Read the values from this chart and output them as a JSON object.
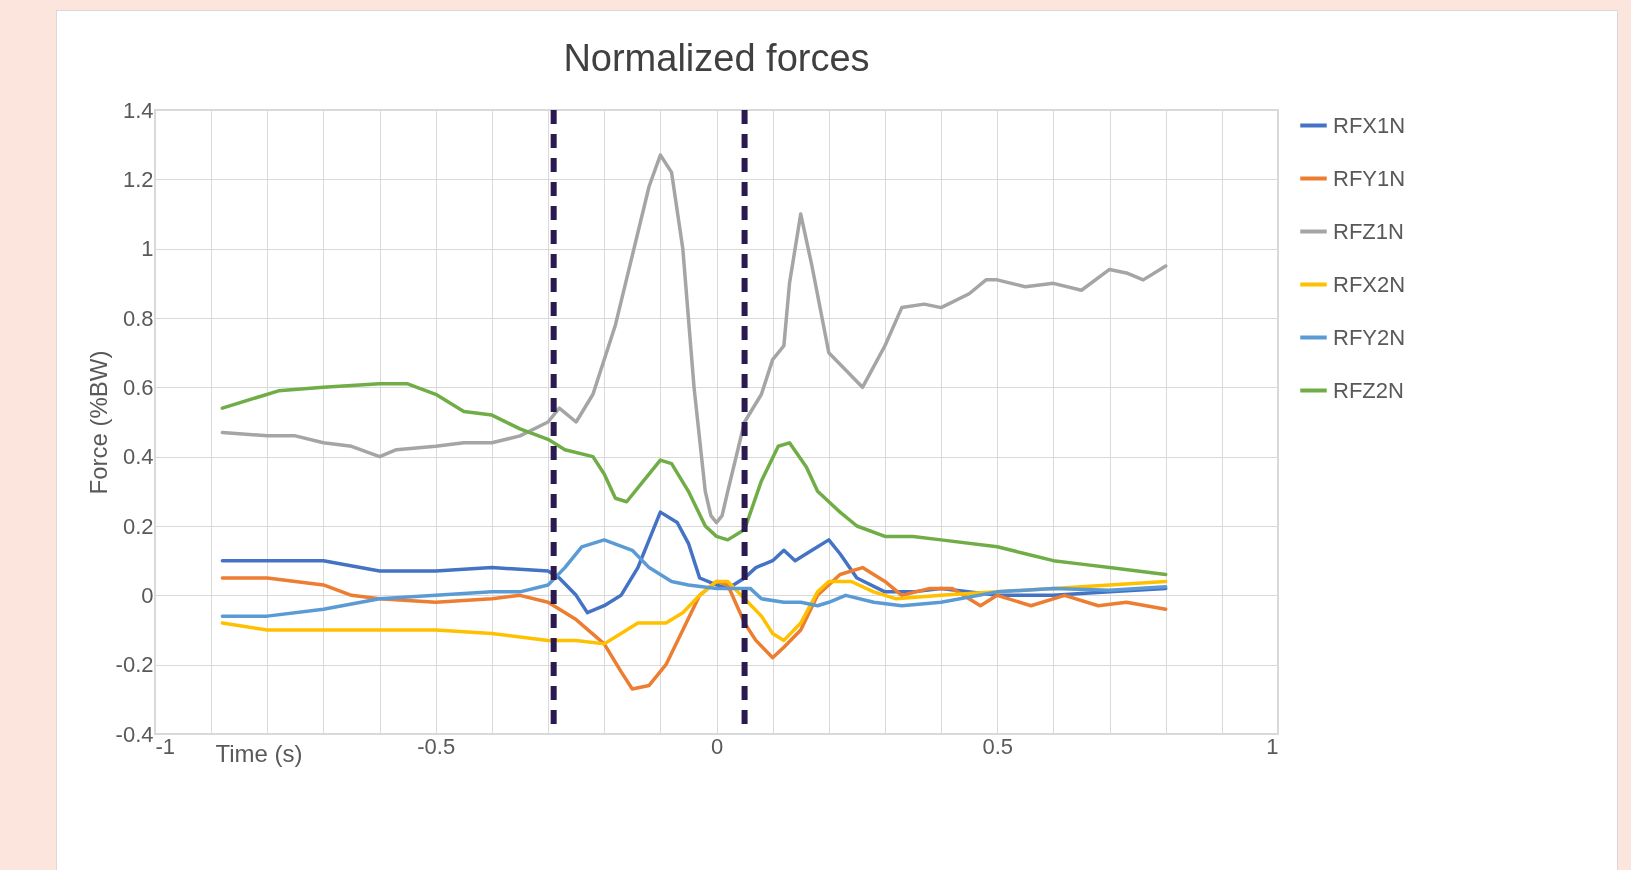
{
  "chart_data": {
    "type": "line",
    "title": "Normalized forces",
    "xlabel": "Time (s)",
    "ylabel": "Force (%BW)",
    "xlim": [
      -1,
      1
    ],
    "xticks": [
      -1,
      {
        "value": -0.9,
        "label": null
      },
      {
        "value": -0.8,
        "label": null
      },
      {
        "value": -0.7,
        "label": null
      },
      {
        "value": -0.6,
        "label": null
      },
      -0.5,
      {
        "value": -0.4,
        "label": null
      },
      {
        "value": -0.3,
        "label": null
      },
      {
        "value": -0.2,
        "label": null
      },
      {
        "value": -0.1,
        "label": null
      },
      0,
      {
        "value": 0.1,
        "label": null
      },
      {
        "value": 0.2,
        "label": null
      },
      {
        "value": 0.3,
        "label": null
      },
      {
        "value": 0.4,
        "label": null
      },
      0.5,
      {
        "value": 0.6,
        "label": null
      },
      {
        "value": 0.7,
        "label": null
      },
      {
        "value": 0.8,
        "label": null
      },
      {
        "value": 0.9,
        "label": null
      },
      1
    ],
    "ylim": [
      -0.4,
      1.4
    ],
    "yticks": [
      -0.4,
      -0.2,
      0,
      0.2,
      0.4,
      0.6,
      0.8,
      1,
      1.2,
      1.4
    ],
    "grid": true,
    "legend": "right",
    "line_style": "solid",
    "ref_lines": [
      {
        "axis": "x",
        "value": -0.29,
        "color": "#2b1a4f",
        "line_style": "dashed"
      },
      {
        "axis": "x",
        "value": 0.05,
        "color": "#2b1a4f",
        "line_style": "dashed"
      }
    ],
    "series": [
      {
        "name": "RFX1N",
        "color": "#4472c4",
        "x": [
          -0.88,
          -0.8,
          -0.7,
          -0.6,
          -0.5,
          -0.4,
          -0.3,
          -0.28,
          -0.25,
          -0.23,
          -0.2,
          -0.17,
          -0.14,
          -0.1,
          -0.07,
          -0.05,
          -0.03,
          0,
          0.02,
          0.05,
          0.07,
          0.1,
          0.12,
          0.14,
          0.17,
          0.2,
          0.22,
          0.25,
          0.3,
          0.35,
          0.4,
          0.5,
          0.6,
          0.7,
          0.8
        ],
        "values": [
          0.1,
          0.1,
          0.1,
          0.07,
          0.07,
          0.08,
          0.07,
          0.05,
          0.0,
          -0.05,
          -0.03,
          0.0,
          0.08,
          0.24,
          0.21,
          0.15,
          0.05,
          0.03,
          0.02,
          0.05,
          0.08,
          0.1,
          0.13,
          0.1,
          0.13,
          0.16,
          0.12,
          0.05,
          0.01,
          0.01,
          0.02,
          0.0,
          0.0,
          0.01,
          0.02
        ]
      },
      {
        "name": "RFY1N",
        "color": "#ed7d31",
        "x": [
          -0.88,
          -0.8,
          -0.7,
          -0.65,
          -0.6,
          -0.5,
          -0.4,
          -0.35,
          -0.3,
          -0.25,
          -0.2,
          -0.17,
          -0.15,
          -0.12,
          -0.09,
          -0.06,
          -0.03,
          0,
          0.02,
          0.05,
          0.07,
          0.1,
          0.12,
          0.15,
          0.18,
          0.22,
          0.26,
          0.3,
          0.33,
          0.38,
          0.42,
          0.47,
          0.5,
          0.56,
          0.62,
          0.68,
          0.73,
          0.8
        ],
        "values": [
          0.05,
          0.05,
          0.03,
          0.0,
          -0.01,
          -0.02,
          -0.01,
          0.0,
          -0.02,
          -0.07,
          -0.14,
          -0.22,
          -0.27,
          -0.26,
          -0.2,
          -0.1,
          0.0,
          0.04,
          0.03,
          -0.08,
          -0.13,
          -0.18,
          -0.15,
          -0.1,
          0.0,
          0.06,
          0.08,
          0.04,
          0.0,
          0.02,
          0.02,
          -0.03,
          0.0,
          -0.03,
          0.0,
          -0.03,
          -0.02,
          -0.04
        ]
      },
      {
        "name": "RFZ1N",
        "color": "#a5a5a5",
        "x": [
          -0.88,
          -0.8,
          -0.75,
          -0.7,
          -0.65,
          -0.6,
          -0.57,
          -0.5,
          -0.45,
          -0.4,
          -0.35,
          -0.3,
          -0.28,
          -0.25,
          -0.22,
          -0.18,
          -0.15,
          -0.12,
          -0.1,
          -0.08,
          -0.06,
          -0.04,
          -0.02,
          -0.01,
          0,
          0.01,
          0.02,
          0.05,
          0.08,
          0.1,
          0.12,
          0.13,
          0.15,
          0.17,
          0.2,
          0.23,
          0.26,
          0.3,
          0.33,
          0.37,
          0.4,
          0.45,
          0.48,
          0.5,
          0.55,
          0.6,
          0.65,
          0.7,
          0.73,
          0.76,
          0.8
        ],
        "values": [
          0.47,
          0.46,
          0.46,
          0.44,
          0.43,
          0.4,
          0.42,
          0.43,
          0.44,
          0.44,
          0.46,
          0.5,
          0.54,
          0.5,
          0.58,
          0.78,
          0.98,
          1.18,
          1.27,
          1.22,
          1.0,
          0.6,
          0.3,
          0.23,
          0.21,
          0.23,
          0.3,
          0.5,
          0.58,
          0.68,
          0.72,
          0.9,
          1.1,
          0.95,
          0.7,
          0.65,
          0.6,
          0.72,
          0.83,
          0.84,
          0.83,
          0.87,
          0.91,
          0.91,
          0.89,
          0.9,
          0.88,
          0.94,
          0.93,
          0.91,
          0.95
        ]
      },
      {
        "name": "RFX2N",
        "color": "#ffc000",
        "x": [
          -0.88,
          -0.8,
          -0.7,
          -0.6,
          -0.5,
          -0.4,
          -0.3,
          -0.25,
          -0.2,
          -0.17,
          -0.14,
          -0.12,
          -0.09,
          -0.06,
          -0.03,
          0,
          0.02,
          0.05,
          0.08,
          0.1,
          0.12,
          0.15,
          0.18,
          0.2,
          0.24,
          0.28,
          0.32,
          0.4,
          0.5,
          0.6,
          0.7,
          0.8
        ],
        "values": [
          -0.08,
          -0.1,
          -0.1,
          -0.1,
          -0.1,
          -0.11,
          -0.13,
          -0.13,
          -0.14,
          -0.11,
          -0.08,
          -0.08,
          -0.08,
          -0.05,
          0.0,
          0.04,
          0.04,
          -0.01,
          -0.06,
          -0.11,
          -0.13,
          -0.08,
          0.01,
          0.04,
          0.04,
          0.01,
          -0.01,
          0.0,
          0.01,
          0.02,
          0.03,
          0.04
        ]
      },
      {
        "name": "RFY2N",
        "color": "#5b9bd5",
        "x": [
          -0.88,
          -0.8,
          -0.7,
          -0.6,
          -0.5,
          -0.4,
          -0.35,
          -0.3,
          -0.27,
          -0.24,
          -0.2,
          -0.15,
          -0.12,
          -0.08,
          -0.05,
          0,
          0.03,
          0.06,
          0.08,
          0.12,
          0.15,
          0.18,
          0.2,
          0.23,
          0.28,
          0.33,
          0.4,
          0.5,
          0.6,
          0.7,
          0.8
        ],
        "values": [
          -0.06,
          -0.06,
          -0.04,
          -0.01,
          0.0,
          0.01,
          0.01,
          0.03,
          0.08,
          0.14,
          0.16,
          0.13,
          0.08,
          0.04,
          0.03,
          0.02,
          0.02,
          0.02,
          -0.01,
          -0.02,
          -0.02,
          -0.03,
          -0.02,
          0.0,
          -0.02,
          -0.03,
          -0.02,
          0.01,
          0.02,
          0.015,
          0.025
        ]
      },
      {
        "name": "RFZ2N",
        "color": "#70ad47",
        "x": [
          -0.88,
          -0.82,
          -0.78,
          -0.7,
          -0.6,
          -0.55,
          -0.5,
          -0.45,
          -0.4,
          -0.35,
          -0.3,
          -0.27,
          -0.22,
          -0.2,
          -0.18,
          -0.16,
          -0.13,
          -0.1,
          -0.08,
          -0.05,
          -0.02,
          0,
          0.02,
          0.05,
          0.08,
          0.11,
          0.13,
          0.16,
          0.18,
          0.22,
          0.25,
          0.3,
          0.35,
          0.4,
          0.5,
          0.55,
          0.6,
          0.65,
          0.7,
          0.75,
          0.8
        ],
        "values": [
          0.54,
          0.57,
          0.59,
          0.6,
          0.61,
          0.61,
          0.58,
          0.53,
          0.52,
          0.48,
          0.45,
          0.42,
          0.4,
          0.35,
          0.28,
          0.27,
          0.33,
          0.39,
          0.38,
          0.3,
          0.2,
          0.17,
          0.16,
          0.19,
          0.33,
          0.43,
          0.44,
          0.37,
          0.3,
          0.24,
          0.2,
          0.17,
          0.17,
          0.16,
          0.14,
          0.12,
          0.1,
          0.09,
          0.08,
          0.07,
          0.06
        ]
      }
    ]
  }
}
